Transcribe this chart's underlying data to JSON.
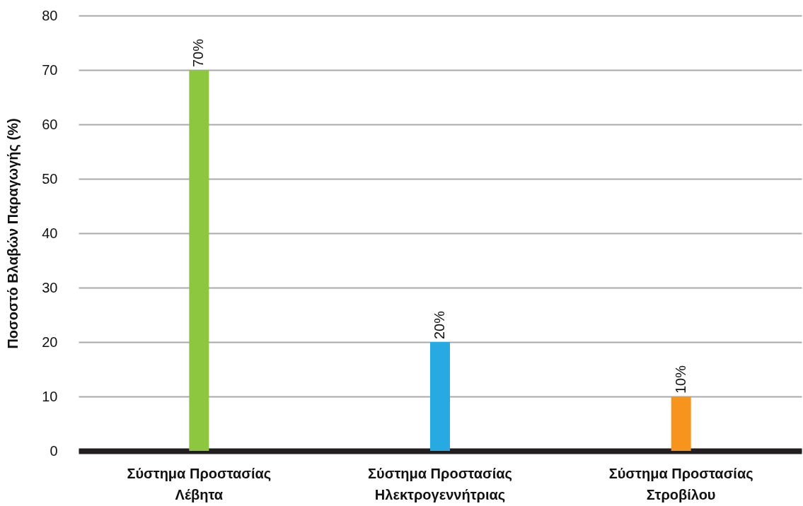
{
  "chart_data": {
    "type": "bar",
    "ylabel": "Ποσοστό Βλαβών Παραγωγής (%)",
    "categories": [
      "Σύστημα Προστασίας\nΛέβητα",
      "Σύστημα Προστασίας\nΗλεκτρογεννήτριας",
      "Σύστημα Προστασίας\nΣτροβίλου"
    ],
    "values": [
      70,
      20,
      10
    ],
    "colors": [
      "#8dc63f",
      "#27aae1",
      "#f7941d"
    ],
    "value_labels": [
      "70%",
      "20%",
      "10%"
    ],
    "ylim": [
      0,
      80
    ],
    "yticks": [
      0,
      10,
      20,
      30,
      40,
      50,
      60,
      70,
      80
    ],
    "grid": "y"
  }
}
